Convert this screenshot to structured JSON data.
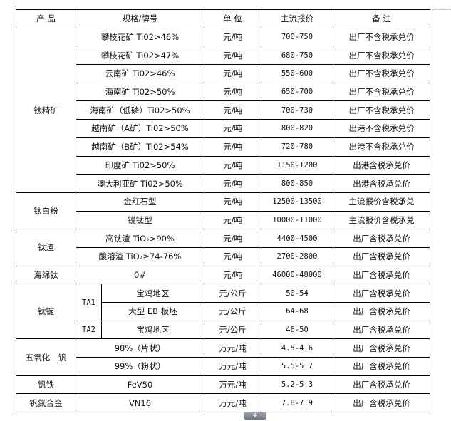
{
  "headers": [
    "产  品",
    "规格/牌号",
    "单 位",
    "主流报价",
    "备  注"
  ],
  "groups": [
    {
      "product": "钛精矿",
      "rows": [
        {
          "spec": "攀枝花矿 Ti02>46%",
          "unit": "元/吨",
          "price": "700-750",
          "note": "出厂不含税承兑价"
        },
        {
          "spec": "攀枝花矿 Ti02>47%",
          "unit": "元/吨",
          "price": "680-750",
          "note": "出厂不含税承兑价"
        },
        {
          "spec": "云南矿 Ti02>46%",
          "unit": "元/吨",
          "price": "550-600",
          "note": "出厂不含税承兑价"
        },
        {
          "spec": "海南矿 Ti02>50%",
          "unit": "元/吨",
          "price": "650-700",
          "note": "出厂不含税承兑价"
        },
        {
          "spec": "海南矿（低磷）Ti02>50%",
          "unit": "元/吨",
          "price": "700-730",
          "note": "出厂不含税承兑价"
        },
        {
          "spec": "越南矿（A矿）Ti02>50%",
          "unit": "元/吨",
          "price": "800-820",
          "note": "出港不含税承兑价"
        },
        {
          "spec": "越南矿（B矿）Ti02>54%",
          "unit": "元/吨",
          "price": "720-780",
          "note": "出港不含税承兑价"
        },
        {
          "spec": "印度矿 Ti02>50%",
          "unit": "元/吨",
          "price": "1150-1200",
          "note": "出港含税承兑价"
        },
        {
          "spec": "澳大利亚矿 Ti02>50%",
          "unit": "元/吨",
          "price": "800-850",
          "note": "出港含税承兑价"
        }
      ]
    },
    {
      "product": "钛白粉",
      "rows": [
        {
          "spec": "金红石型",
          "unit": "元/吨",
          "price": "12500-13500",
          "note": "主流报价含税承兑"
        },
        {
          "spec": "锐钛型",
          "unit": "元/吨",
          "price": "10000-11000",
          "note": "主流报价含税承兑"
        }
      ]
    },
    {
      "product": "钛渣",
      "rows": [
        {
          "spec": "高钛渣 TiO₂>90%",
          "unit": "元/吨",
          "price": "4400-4500",
          "note": "出厂含税承兑价"
        },
        {
          "spec": "酸溶渣 TiO₂≥74-76%",
          "unit": "元/吨",
          "price": "2700-2800",
          "note": "出厂含税承兑价"
        }
      ]
    },
    {
      "product": "海绵钛",
      "rows": [
        {
          "spec": "0#",
          "unit": "元/吨",
          "price": "46000-48000",
          "note": "出厂含税承兑价"
        }
      ]
    },
    {
      "product": "钛锭",
      "rows": [
        {
          "grade": "TA1",
          "gradeSpan": 2,
          "spec": "宝鸡地区",
          "unit": "元/公斤",
          "price": "50-54",
          "note": "出厂含税承兑价"
        },
        {
          "spec": "大型 EB 板坯",
          "unit": "元/公斤",
          "price": "64-68",
          "note": "出厂含税承兑价"
        },
        {
          "grade": "TA2",
          "gradeSpan": 1,
          "spec": "宝鸡地区",
          "unit": "元/公斤",
          "price": "46-50",
          "note": "出厂含税承兑价"
        }
      ]
    },
    {
      "product": "五氧化二钒",
      "rows": [
        {
          "spec": "98%（片状）",
          "unit": "万元/吨",
          "price": "4.5-4.6",
          "note": "出厂含税承兑价"
        },
        {
          "spec": "99%（粉状）",
          "unit": "万元/吨",
          "price": "5.5-5.7",
          "note": "出厂含税承兑价"
        }
      ]
    },
    {
      "product": "钒铁",
      "rows": [
        {
          "spec": "FeV50",
          "unit": "万元/吨",
          "price": "5.2-5.3",
          "note": "出厂含税承兑价"
        }
      ]
    },
    {
      "product": "钒氮合金",
      "rows": [
        {
          "spec": "VN16",
          "unit": "万元/吨",
          "price": "7.8-7.9",
          "note": "出厂含税承兑价"
        }
      ]
    }
  ],
  "expand_button": "+"
}
